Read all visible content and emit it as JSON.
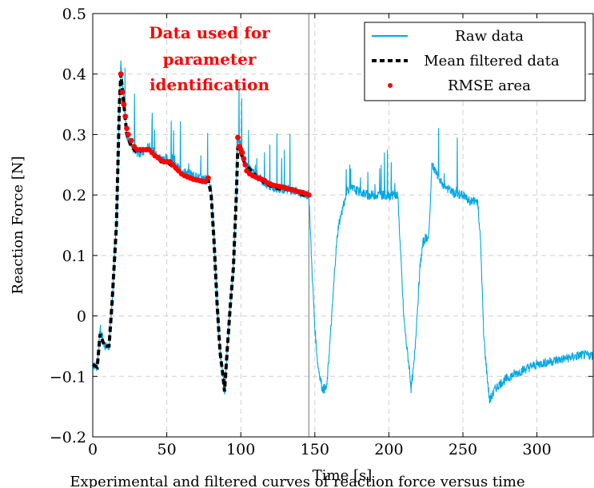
{
  "chart_data": {
    "type": "line",
    "xlabel": "Time [s]",
    "ylabel": "Reaction Force [N]",
    "xlim": [
      0,
      338
    ],
    "ylim": [
      -0.2,
      0.5
    ],
    "xticks": [
      0,
      50,
      100,
      150,
      200,
      250,
      300
    ],
    "xtick_labels": [
      "0",
      "50",
      "100",
      "150",
      "200",
      "250",
      "300"
    ],
    "yticks": [
      -0.2,
      -0.1,
      0,
      0.1,
      0.2,
      0.3,
      0.4,
      0.5
    ],
    "ytick_labels": [
      "−0.2",
      "−0.1",
      "0",
      "0.1",
      "0.2",
      "0.3",
      "0.4",
      "0.5"
    ],
    "grid": true,
    "legend_position": "top-right",
    "annotation": {
      "lines": [
        "Data used for",
        "parameter",
        "identification"
      ],
      "color": "#ff0000"
    },
    "vertical_line_x": 146,
    "caption": "Experimental and filtered curves of reaction force versus time",
    "series": [
      {
        "name": "Raw data",
        "color": "#00a8e6",
        "x": [
          0,
          3,
          5,
          8,
          11,
          13,
          16,
          18,
          19,
          21,
          23,
          26,
          30,
          34,
          38,
          42,
          46,
          50,
          55,
          60,
          65,
          70,
          75,
          78,
          80,
          82,
          84,
          86,
          88,
          89,
          91,
          93,
          95,
          97,
          98,
          100,
          103,
          107,
          111,
          116,
          120,
          126,
          132,
          138,
          142,
          146,
          148,
          150,
          152,
          155,
          158,
          160,
          162,
          164,
          166,
          168,
          172,
          176,
          180,
          186,
          192,
          198,
          204,
          206,
          208,
          210,
          212,
          214,
          215,
          217,
          219,
          221,
          223,
          225,
          227,
          229,
          231,
          235,
          240,
          245,
          250,
          254,
          258,
          260,
          262,
          264,
          266,
          268,
          272,
          276,
          282,
          290,
          300,
          310,
          320,
          330,
          338
        ],
        "y": [
          -0.08,
          -0.085,
          -0.02,
          -0.05,
          -0.05,
          0.02,
          0.15,
          0.35,
          0.42,
          0.36,
          0.3,
          0.28,
          0.27,
          0.27,
          0.28,
          0.27,
          0.26,
          0.26,
          0.25,
          0.24,
          0.235,
          0.23,
          0.225,
          0.23,
          0.21,
          0.12,
          0.02,
          -0.06,
          -0.1,
          -0.13,
          -0.05,
          0.02,
          0.08,
          0.2,
          0.3,
          0.28,
          0.25,
          0.24,
          0.23,
          0.22,
          0.215,
          0.21,
          0.21,
          0.205,
          0.2,
          0.2,
          0.08,
          -0.02,
          -0.08,
          -0.12,
          -0.12,
          -0.05,
          0.02,
          0.1,
          0.15,
          0.17,
          0.21,
          0.21,
          0.205,
          0.2,
          0.2,
          0.2,
          0.2,
          0.2,
          0.1,
          0.0,
          -0.05,
          -0.09,
          -0.12,
          -0.08,
          0.0,
          0.08,
          0.12,
          0.13,
          0.13,
          0.25,
          0.24,
          0.22,
          0.21,
          0.2,
          0.2,
          0.19,
          0.19,
          0.19,
          0.12,
          -0.03,
          -0.09,
          -0.14,
          -0.12,
          -0.11,
          -0.1,
          -0.09,
          -0.08,
          -0.075,
          -0.07,
          -0.065,
          -0.065
        ]
      },
      {
        "name": "Mean filtered data",
        "color": "#000000",
        "x": [
          0,
          3,
          5,
          8,
          11,
          13,
          16,
          18,
          19,
          21,
          23,
          26,
          30,
          34,
          38,
          42,
          46,
          50,
          55,
          60,
          65,
          70,
          75,
          78,
          80,
          82,
          84,
          86,
          88,
          89,
          91,
          93,
          95,
          97,
          98,
          100,
          103,
          107,
          111,
          116,
          120,
          126,
          132,
          138,
          142,
          146
        ],
        "y": [
          -0.08,
          -0.085,
          -0.03,
          -0.05,
          -0.05,
          0.02,
          0.15,
          0.35,
          0.4,
          0.35,
          0.3,
          0.28,
          0.27,
          0.275,
          0.275,
          0.265,
          0.255,
          0.255,
          0.245,
          0.235,
          0.23,
          0.225,
          0.22,
          0.225,
          0.2,
          0.12,
          0.02,
          -0.06,
          -0.1,
          -0.125,
          -0.05,
          0.02,
          0.08,
          0.2,
          0.28,
          0.27,
          0.25,
          0.24,
          0.23,
          0.22,
          0.215,
          0.21,
          0.21,
          0.205,
          0.2,
          0.2
        ]
      },
      {
        "name": "RMSE area",
        "color": "#ff0000",
        "x": [
          19,
          20,
          21,
          22,
          23,
          24,
          26,
          28,
          30,
          32,
          34,
          36,
          38,
          40,
          42,
          44,
          46,
          48,
          50,
          52,
          54,
          56,
          58,
          60,
          62,
          64,
          66,
          68,
          70,
          72,
          74,
          76,
          78,
          98,
          99,
          100,
          101,
          102,
          103,
          104,
          106,
          108,
          110,
          112,
          114,
          116,
          118,
          120,
          122,
          124,
          126,
          128,
          130,
          132,
          134,
          136,
          138,
          140,
          142,
          144,
          146
        ],
        "y": [
          0.4,
          0.37,
          0.35,
          0.33,
          0.31,
          0.3,
          0.29,
          0.28,
          0.275,
          0.275,
          0.275,
          0.275,
          0.275,
          0.27,
          0.265,
          0.262,
          0.258,
          0.255,
          0.255,
          0.255,
          0.25,
          0.245,
          0.24,
          0.235,
          0.232,
          0.23,
          0.228,
          0.226,
          0.225,
          0.224,
          0.223,
          0.222,
          0.228,
          0.295,
          0.28,
          0.275,
          0.27,
          0.26,
          0.25,
          0.24,
          0.235,
          0.232,
          0.23,
          0.228,
          0.226,
          0.224,
          0.22,
          0.218,
          0.216,
          0.215,
          0.214,
          0.213,
          0.212,
          0.21,
          0.209,
          0.208,
          0.206,
          0.205,
          0.204,
          0.202,
          0.2
        ]
      }
    ]
  }
}
